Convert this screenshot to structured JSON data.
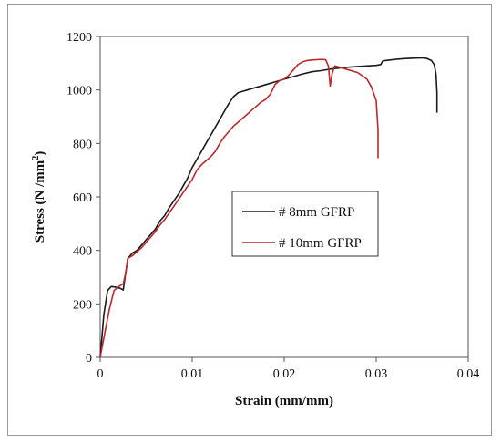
{
  "chart_data": {
    "type": "line",
    "xlabel": "Strain (mm/mm)",
    "ylabel_main": "Stress (N /mm",
    "ylabel_sup": "2",
    "ylabel_end": ")",
    "xlim": [
      0,
      0.04
    ],
    "ylim": [
      0,
      1200
    ],
    "xticks": [
      0,
      0.01,
      0.02,
      0.03,
      0.04
    ],
    "xtick_labels": [
      "0",
      "0.01",
      "0.02",
      "0.03",
      "0.04"
    ],
    "yticks": [
      0,
      200,
      400,
      600,
      800,
      1000,
      1200
    ],
    "ytick_labels": [
      "0",
      "200",
      "400",
      "600",
      "800",
      "1000",
      "1200"
    ],
    "grid": false,
    "legend": "center-right",
    "series": [
      {
        "name": "# 8mm GFRP",
        "color": "#1a1a1a",
        "points": [
          [
            0,
            0
          ],
          [
            0.0004,
            160
          ],
          [
            0.0008,
            250
          ],
          [
            0.0012,
            265
          ],
          [
            0.0018,
            262
          ],
          [
            0.0022,
            258
          ],
          [
            0.0025,
            252
          ],
          [
            0.0027,
            300
          ],
          [
            0.003,
            370
          ],
          [
            0.0035,
            390
          ],
          [
            0.004,
            400
          ],
          [
            0.0045,
            420
          ],
          [
            0.005,
            440
          ],
          [
            0.0055,
            460
          ],
          [
            0.006,
            480
          ],
          [
            0.0065,
            510
          ],
          [
            0.007,
            530
          ],
          [
            0.0075,
            560
          ],
          [
            0.008,
            585
          ],
          [
            0.0085,
            610
          ],
          [
            0.009,
            640
          ],
          [
            0.0095,
            670
          ],
          [
            0.01,
            710
          ],
          [
            0.0105,
            740
          ],
          [
            0.011,
            770
          ],
          [
            0.0115,
            800
          ],
          [
            0.012,
            830
          ],
          [
            0.0125,
            860
          ],
          [
            0.013,
            890
          ],
          [
            0.0135,
            920
          ],
          [
            0.014,
            950
          ],
          [
            0.0145,
            975
          ],
          [
            0.015,
            990
          ],
          [
            0.0155,
            995
          ],
          [
            0.016,
            1000
          ],
          [
            0.0165,
            1005
          ],
          [
            0.017,
            1010
          ],
          [
            0.0175,
            1015
          ],
          [
            0.018,
            1020
          ],
          [
            0.0185,
            1025
          ],
          [
            0.019,
            1030
          ],
          [
            0.0195,
            1035
          ],
          [
            0.02,
            1040
          ],
          [
            0.021,
            1050
          ],
          [
            0.022,
            1060
          ],
          [
            0.023,
            1068
          ],
          [
            0.024,
            1072
          ],
          [
            0.025,
            1078
          ],
          [
            0.026,
            1082
          ],
          [
            0.027,
            1085
          ],
          [
            0.028,
            1088
          ],
          [
            0.029,
            1090
          ],
          [
            0.03,
            1092
          ],
          [
            0.0305,
            1095
          ],
          [
            0.0307,
            1108
          ],
          [
            0.031,
            1110
          ],
          [
            0.032,
            1114
          ],
          [
            0.033,
            1117
          ],
          [
            0.034,
            1119
          ],
          [
            0.035,
            1120
          ],
          [
            0.0355,
            1118
          ],
          [
            0.036,
            1110
          ],
          [
            0.0363,
            1095
          ],
          [
            0.0365,
            1060
          ],
          [
            0.0366,
            990
          ],
          [
            0.0366,
            915
          ]
        ]
      },
      {
        "name": "# 10mm GFRP",
        "color": "#c0262c",
        "points": [
          [
            0,
            0
          ],
          [
            0.0005,
            90
          ],
          [
            0.001,
            180
          ],
          [
            0.0015,
            250
          ],
          [
            0.002,
            265
          ],
          [
            0.0025,
            275
          ],
          [
            0.0028,
            320
          ],
          [
            0.003,
            370
          ],
          [
            0.0035,
            380
          ],
          [
            0.004,
            395
          ],
          [
            0.0045,
            410
          ],
          [
            0.005,
            430
          ],
          [
            0.0055,
            450
          ],
          [
            0.006,
            470
          ],
          [
            0.0065,
            495
          ],
          [
            0.007,
            515
          ],
          [
            0.0075,
            540
          ],
          [
            0.008,
            565
          ],
          [
            0.0085,
            590
          ],
          [
            0.009,
            615
          ],
          [
            0.0095,
            640
          ],
          [
            0.01,
            665
          ],
          [
            0.0105,
            700
          ],
          [
            0.011,
            720
          ],
          [
            0.0115,
            735
          ],
          [
            0.012,
            750
          ],
          [
            0.0125,
            770
          ],
          [
            0.013,
            800
          ],
          [
            0.0135,
            825
          ],
          [
            0.014,
            845
          ],
          [
            0.0145,
            865
          ],
          [
            0.015,
            880
          ],
          [
            0.0155,
            895
          ],
          [
            0.016,
            910
          ],
          [
            0.0165,
            925
          ],
          [
            0.017,
            940
          ],
          [
            0.0175,
            955
          ],
          [
            0.018,
            965
          ],
          [
            0.0185,
            985
          ],
          [
            0.019,
            1020
          ],
          [
            0.0195,
            1035
          ],
          [
            0.02,
            1040
          ],
          [
            0.0205,
            1055
          ],
          [
            0.021,
            1075
          ],
          [
            0.0215,
            1095
          ],
          [
            0.022,
            1105
          ],
          [
            0.0225,
            1110
          ],
          [
            0.023,
            1112
          ],
          [
            0.0235,
            1113
          ],
          [
            0.024,
            1114
          ],
          [
            0.0245,
            1113
          ],
          [
            0.0248,
            1090
          ],
          [
            0.025,
            1015
          ],
          [
            0.0252,
            1060
          ],
          [
            0.0255,
            1090
          ],
          [
            0.026,
            1085
          ],
          [
            0.027,
            1075
          ],
          [
            0.028,
            1065
          ],
          [
            0.029,
            1040
          ],
          [
            0.0295,
            1010
          ],
          [
            0.03,
            960
          ],
          [
            0.0302,
            850
          ],
          [
            0.0302,
            745
          ]
        ]
      }
    ]
  }
}
